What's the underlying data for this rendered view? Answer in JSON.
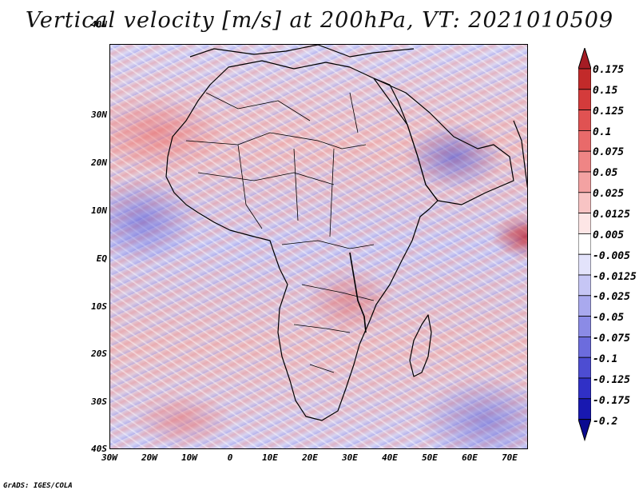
{
  "title": "Vertical velocity [m/s] at 200hPa, VT: 2021010509",
  "latitude_labels": [
    "40N",
    "30N",
    "20N",
    "10N",
    "EQ",
    "10S",
    "20S",
    "30S",
    "40S"
  ],
  "longitude_labels": [
    "30W",
    "20W",
    "10W",
    "0",
    "10E",
    "20E",
    "30E",
    "40E",
    "50E",
    "60E",
    "70E"
  ],
  "colorbar": {
    "levels": [
      "0.175",
      "0.15",
      "0.125",
      "0.1",
      "0.075",
      "0.05",
      "0.025",
      "0.0125",
      "0.005",
      "-0.005",
      "-0.0125",
      "-0.025",
      "-0.05",
      "-0.075",
      "-0.1",
      "-0.125",
      "-0.175",
      "-0.2"
    ],
    "colors": [
      "#a51c24",
      "#c22a2a",
      "#d43b3b",
      "#e05252",
      "#e96a6a",
      "#ef8585",
      "#f3a2a2",
      "#f8c4c4",
      "#fde6e6",
      "#ffffff",
      "#e3e3fb",
      "#c6c6f5",
      "#a9a9ee",
      "#8b8be6",
      "#6c6cdd",
      "#4d4dd2",
      "#3030c6",
      "#1818b0",
      "#0a0a90"
    ]
  },
  "credit": "GrADS: IGES/COLA"
}
